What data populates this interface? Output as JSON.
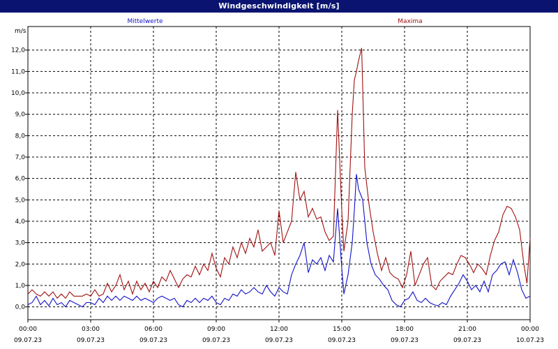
{
  "window": {
    "title": "Windgeschwindigkeit [m/s]"
  },
  "colors": {
    "mean": "#1010c8",
    "max": "#a01010",
    "title_bar": "#0a1470"
  },
  "chart_data": {
    "type": "line",
    "title": "Windgeschwindigkeit [m/s]",
    "ylabel": "m/s",
    "xlabel": "",
    "ylim": [
      -0.6,
      13.1
    ],
    "grid": true,
    "y_ticks": [
      "0,0",
      "1,0",
      "2,0",
      "3,0",
      "4,0",
      "5,0",
      "6,0",
      "7,0",
      "8,0",
      "9,0",
      "10,0",
      "11,0",
      "12,0"
    ],
    "y_tick_values": [
      0,
      1,
      2,
      3,
      4,
      5,
      6,
      7,
      8,
      9,
      10,
      11,
      12
    ],
    "x_ticks": [
      {
        "time": "00:00",
        "date": "09.07.23"
      },
      {
        "time": "03:00",
        "date": "09.07.23"
      },
      {
        "time": "06:00",
        "date": "09.07.23"
      },
      {
        "time": "09:00",
        "date": "09.07.23"
      },
      {
        "time": "12:00",
        "date": "09.07.23"
      },
      {
        "time": "15:00",
        "date": "09.07.23"
      },
      {
        "time": "18:00",
        "date": "09.07.23"
      },
      {
        "time": "21:00",
        "date": "09.07.23"
      },
      {
        "time": "00:00",
        "date": "10.07.23"
      }
    ],
    "x_tick_hours": [
      0,
      3,
      6,
      9,
      12,
      15,
      18,
      21,
      24
    ],
    "series": [
      {
        "name": "Mittelwerte",
        "color": "#1010c8",
        "points": [
          [
            0,
            0.1
          ],
          [
            0.2,
            0.2
          ],
          [
            0.4,
            0.5
          ],
          [
            0.6,
            0.1
          ],
          [
            0.8,
            0.3
          ],
          [
            1.0,
            0.05
          ],
          [
            1.2,
            0.4
          ],
          [
            1.4,
            0.1
          ],
          [
            1.6,
            0.2
          ],
          [
            1.8,
            0.0
          ],
          [
            2.0,
            0.3
          ],
          [
            2.2,
            0.2
          ],
          [
            2.4,
            0.1
          ],
          [
            2.6,
            0.0
          ],
          [
            2.8,
            0.2
          ],
          [
            3.0,
            0.2
          ],
          [
            3.2,
            0.1
          ],
          [
            3.4,
            0.4
          ],
          [
            3.6,
            0.2
          ],
          [
            3.8,
            0.5
          ],
          [
            4.0,
            0.3
          ],
          [
            4.2,
            0.5
          ],
          [
            4.4,
            0.3
          ],
          [
            4.6,
            0.5
          ],
          [
            4.8,
            0.4
          ],
          [
            5.0,
            0.3
          ],
          [
            5.2,
            0.5
          ],
          [
            5.4,
            0.3
          ],
          [
            5.6,
            0.4
          ],
          [
            5.8,
            0.3
          ],
          [
            6.0,
            0.2
          ],
          [
            6.2,
            0.4
          ],
          [
            6.4,
            0.5
          ],
          [
            6.6,
            0.4
          ],
          [
            6.8,
            0.3
          ],
          [
            7.0,
            0.4
          ],
          [
            7.2,
            0.1
          ],
          [
            7.4,
            0.0
          ],
          [
            7.6,
            0.3
          ],
          [
            7.8,
            0.2
          ],
          [
            8.0,
            0.4
          ],
          [
            8.2,
            0.2
          ],
          [
            8.4,
            0.4
          ],
          [
            8.6,
            0.3
          ],
          [
            8.8,
            0.5
          ],
          [
            9.0,
            0.2
          ],
          [
            9.2,
            0.1
          ],
          [
            9.4,
            0.4
          ],
          [
            9.6,
            0.3
          ],
          [
            9.8,
            0.6
          ],
          [
            10.0,
            0.5
          ],
          [
            10.2,
            0.8
          ],
          [
            10.4,
            0.6
          ],
          [
            10.6,
            0.7
          ],
          [
            10.8,
            0.9
          ],
          [
            11.0,
            0.7
          ],
          [
            11.2,
            0.6
          ],
          [
            11.4,
            1.0
          ],
          [
            11.6,
            0.7
          ],
          [
            11.8,
            0.5
          ],
          [
            12.0,
            0.9
          ],
          [
            12.2,
            0.7
          ],
          [
            12.4,
            0.6
          ],
          [
            12.6,
            1.5
          ],
          [
            12.8,
            2.0
          ],
          [
            13.0,
            2.4
          ],
          [
            13.2,
            3.0
          ],
          [
            13.4,
            1.6
          ],
          [
            13.6,
            2.2
          ],
          [
            13.8,
            2.0
          ],
          [
            14.0,
            2.3
          ],
          [
            14.2,
            1.7
          ],
          [
            14.4,
            2.4
          ],
          [
            14.6,
            2.1
          ],
          [
            14.8,
            4.6
          ],
          [
            15.0,
            1.8
          ],
          [
            15.1,
            0.6
          ],
          [
            15.3,
            1.5
          ],
          [
            15.5,
            3.0
          ],
          [
            15.6,
            4.5
          ],
          [
            15.7,
            6.2
          ],
          [
            15.8,
            5.5
          ],
          [
            16.0,
            5.0
          ],
          [
            16.2,
            3.0
          ],
          [
            16.4,
            2.0
          ],
          [
            16.6,
            1.5
          ],
          [
            16.8,
            1.3
          ],
          [
            17.0,
            1.0
          ],
          [
            17.2,
            0.8
          ],
          [
            17.4,
            0.3
          ],
          [
            17.6,
            0.1
          ],
          [
            17.8,
            0.0
          ],
          [
            18.0,
            0.3
          ],
          [
            18.2,
            0.4
          ],
          [
            18.4,
            0.7
          ],
          [
            18.6,
            0.3
          ],
          [
            18.8,
            0.2
          ],
          [
            19.0,
            0.4
          ],
          [
            19.2,
            0.2
          ],
          [
            19.4,
            0.1
          ],
          [
            19.6,
            0.05
          ],
          [
            19.8,
            0.2
          ],
          [
            20.0,
            0.1
          ],
          [
            20.2,
            0.5
          ],
          [
            20.4,
            0.8
          ],
          [
            20.6,
            1.1
          ],
          [
            20.8,
            1.5
          ],
          [
            21.0,
            1.2
          ],
          [
            21.2,
            0.8
          ],
          [
            21.4,
            1.0
          ],
          [
            21.6,
            0.7
          ],
          [
            21.8,
            1.2
          ],
          [
            22.0,
            0.7
          ],
          [
            22.2,
            1.5
          ],
          [
            22.4,
            1.7
          ],
          [
            22.6,
            2.0
          ],
          [
            22.8,
            2.1
          ],
          [
            23.0,
            1.5
          ],
          [
            23.2,
            2.2
          ],
          [
            23.4,
            1.6
          ],
          [
            23.6,
            0.8
          ],
          [
            23.8,
            0.4
          ],
          [
            24.0,
            0.5
          ]
        ]
      },
      {
        "name": "Maxima",
        "color": "#a01010",
        "points": [
          [
            0,
            0.6
          ],
          [
            0.2,
            0.8
          ],
          [
            0.4,
            0.6
          ],
          [
            0.6,
            0.5
          ],
          [
            0.8,
            0.7
          ],
          [
            1.0,
            0.5
          ],
          [
            1.2,
            0.7
          ],
          [
            1.4,
            0.4
          ],
          [
            1.6,
            0.6
          ],
          [
            1.8,
            0.4
          ],
          [
            2.0,
            0.7
          ],
          [
            2.2,
            0.5
          ],
          [
            2.4,
            0.5
          ],
          [
            2.6,
            0.5
          ],
          [
            2.8,
            0.6
          ],
          [
            3.0,
            0.5
          ],
          [
            3.2,
            0.8
          ],
          [
            3.4,
            0.5
          ],
          [
            3.6,
            0.6
          ],
          [
            3.8,
            1.1
          ],
          [
            4.0,
            0.7
          ],
          [
            4.2,
            1.0
          ],
          [
            4.4,
            1.5
          ],
          [
            4.6,
            0.8
          ],
          [
            4.8,
            1.2
          ],
          [
            5.0,
            0.6
          ],
          [
            5.2,
            1.2
          ],
          [
            5.4,
            0.8
          ],
          [
            5.6,
            1.1
          ],
          [
            5.8,
            0.7
          ],
          [
            6.0,
            1.2
          ],
          [
            6.2,
            0.9
          ],
          [
            6.4,
            1.4
          ],
          [
            6.6,
            1.2
          ],
          [
            6.8,
            1.7
          ],
          [
            7.0,
            1.3
          ],
          [
            7.2,
            0.9
          ],
          [
            7.4,
            1.3
          ],
          [
            7.6,
            1.5
          ],
          [
            7.8,
            1.4
          ],
          [
            8.0,
            1.9
          ],
          [
            8.2,
            1.5
          ],
          [
            8.4,
            2.0
          ],
          [
            8.6,
            1.7
          ],
          [
            8.8,
            2.5
          ],
          [
            9.0,
            1.8
          ],
          [
            9.2,
            1.4
          ],
          [
            9.4,
            2.3
          ],
          [
            9.6,
            2.0
          ],
          [
            9.8,
            2.8
          ],
          [
            10.0,
            2.3
          ],
          [
            10.2,
            3.0
          ],
          [
            10.4,
            2.5
          ],
          [
            10.6,
            3.2
          ],
          [
            10.8,
            2.8
          ],
          [
            11.0,
            3.6
          ],
          [
            11.2,
            2.6
          ],
          [
            11.4,
            2.8
          ],
          [
            11.6,
            3.0
          ],
          [
            11.8,
            2.4
          ],
          [
            12.0,
            4.5
          ],
          [
            12.2,
            3.0
          ],
          [
            12.4,
            3.5
          ],
          [
            12.6,
            4.0
          ],
          [
            12.8,
            6.3
          ],
          [
            13.0,
            5.0
          ],
          [
            13.2,
            5.4
          ],
          [
            13.4,
            4.2
          ],
          [
            13.6,
            4.6
          ],
          [
            13.8,
            4.1
          ],
          [
            14.0,
            4.2
          ],
          [
            14.2,
            3.5
          ],
          [
            14.4,
            3.1
          ],
          [
            14.6,
            3.3
          ],
          [
            14.8,
            9.2
          ],
          [
            15.0,
            4.5
          ],
          [
            15.1,
            2.6
          ],
          [
            15.3,
            4.0
          ],
          [
            15.5,
            9.0
          ],
          [
            15.6,
            10.6
          ],
          [
            15.7,
            11.0
          ],
          [
            15.8,
            11.5
          ],
          [
            15.95,
            12.1
          ],
          [
            16.1,
            6.5
          ],
          [
            16.3,
            4.8
          ],
          [
            16.5,
            3.5
          ],
          [
            16.7,
            2.5
          ],
          [
            16.9,
            1.7
          ],
          [
            17.1,
            2.3
          ],
          [
            17.3,
            1.6
          ],
          [
            17.5,
            1.4
          ],
          [
            17.7,
            1.3
          ],
          [
            17.9,
            0.9
          ],
          [
            18.1,
            1.5
          ],
          [
            18.3,
            2.6
          ],
          [
            18.5,
            1.0
          ],
          [
            18.7,
            1.5
          ],
          [
            18.9,
            2.0
          ],
          [
            19.1,
            2.3
          ],
          [
            19.3,
            1.0
          ],
          [
            19.5,
            0.8
          ],
          [
            19.7,
            1.2
          ],
          [
            19.9,
            1.4
          ],
          [
            20.1,
            1.6
          ],
          [
            20.3,
            1.5
          ],
          [
            20.5,
            2.0
          ],
          [
            20.7,
            2.4
          ],
          [
            20.9,
            2.3
          ],
          [
            21.1,
            2.0
          ],
          [
            21.3,
            1.6
          ],
          [
            21.5,
            2.0
          ],
          [
            21.7,
            1.8
          ],
          [
            21.9,
            1.5
          ],
          [
            22.1,
            2.4
          ],
          [
            22.3,
            3.1
          ],
          [
            22.5,
            3.5
          ],
          [
            22.7,
            4.3
          ],
          [
            22.9,
            4.7
          ],
          [
            23.1,
            4.6
          ],
          [
            23.3,
            4.2
          ],
          [
            23.5,
            3.6
          ],
          [
            23.7,
            2.0
          ],
          [
            23.85,
            1.1
          ],
          [
            24.0,
            3.2
          ]
        ]
      }
    ]
  }
}
